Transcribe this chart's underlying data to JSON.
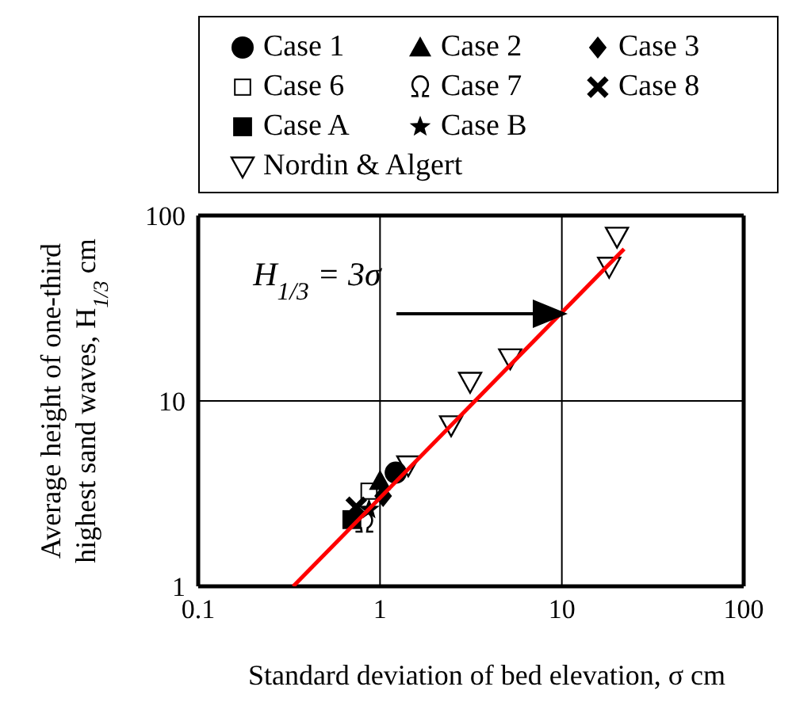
{
  "chart_data": {
    "type": "scatter",
    "xlabel": "Standard deviation of bed elevation, σ cm",
    "ylabel": "Average height of one-third highest sand waves, H$_{1/3}$ cm",
    "log": "xy",
    "xlim": [
      0.1,
      100
    ],
    "ylim": [
      1,
      100
    ],
    "xticks": [
      0.1,
      1,
      10,
      100
    ],
    "yticks": [
      1,
      10,
      100
    ],
    "grid": true,
    "legend": "top",
    "annotations": [
      "H$_{1/3}$ = 3σ"
    ],
    "series": [
      {
        "name": "Case 1",
        "color": "#000000",
        "marker": "circle",
        "x": [
          1.22
        ],
        "values": [
          4.1
        ]
      },
      {
        "name": "Case 2",
        "color": "#000000",
        "marker": "triangle",
        "x": [
          1.0
        ],
        "values": [
          3.7
        ]
      },
      {
        "name": "Case 3",
        "color": "#000000",
        "marker": "diamond",
        "x": [
          1.04
        ],
        "values": [
          3.07
        ]
      },
      {
        "name": "Case 6",
        "color": "#000000",
        "marker": "square-open",
        "x": [
          0.87
        ],
        "values": [
          3.26
        ]
      },
      {
        "name": "Case 7",
        "color": "#000000",
        "x": [
          0.82
        ],
        "values": [
          2.2
        ]
      },
      {
        "name": "Case 8",
        "color": "#000000",
        "marker": "cross",
        "x": [
          0.74
        ],
        "values": [
          2.67
        ]
      },
      {
        "name": "Case A",
        "color": "#000000",
        "marker": "square",
        "x": [
          0.7
        ],
        "values": [
          2.29
        ]
      },
      {
        "name": "Case B",
        "color": "#000000",
        "marker": "star",
        "x": [
          0.87
        ],
        "values": [
          2.6
        ]
      },
      {
        "name": "Nordin & Algert",
        "color": "#000000",
        "marker": "triangle-down",
        "x": [
          1.43,
          2.46,
          3.13,
          5.2,
          18.2,
          20.1
        ],
        "values": [
          4.5,
          7.4,
          12.7,
          17,
          53,
          77
        ]
      },
      {
        "type": "line",
        "color": "#ff0000",
        "marker": "none",
        "x": [
          0.333,
          22
        ],
        "values": [
          1,
          66
        ]
      }
    ]
  }
}
